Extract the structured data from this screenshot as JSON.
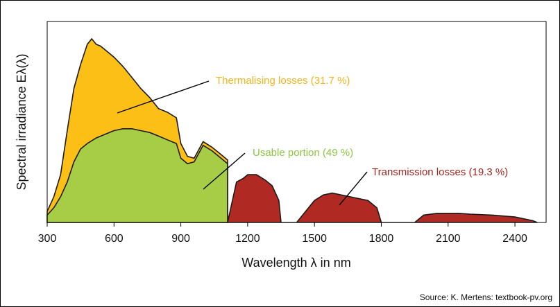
{
  "chart_data": {
    "type": "area",
    "xlabel": "Wavelength λ in nm",
    "ylabel": "Spectral irradiance Eλ(λ)",
    "xlim": [
      300,
      2540
    ],
    "ylim": [
      0,
      1
    ],
    "x_ticks": [
      300,
      600,
      900,
      1200,
      1500,
      1800,
      2100,
      2400
    ],
    "x_tick_labels": [
      "300",
      "600",
      "900",
      "1200",
      "1500",
      "1800",
      "2100",
      "2400"
    ],
    "series": [
      {
        "name": "Thermalising losses (31.7 %)",
        "color": "#fbbf16",
        "x": [
          300,
          330,
          360,
          390,
          420,
          450,
          480,
          500,
          520,
          540,
          560,
          600,
          640,
          680,
          720,
          760,
          800,
          840,
          880,
          900,
          930,
          960,
          1000,
          1040,
          1080,
          1110
        ],
        "values": [
          0.06,
          0.14,
          0.26,
          0.5,
          0.73,
          0.86,
          0.97,
          1.0,
          0.97,
          0.96,
          0.94,
          0.9,
          0.85,
          0.79,
          0.73,
          0.68,
          0.62,
          0.6,
          0.57,
          0.43,
          0.36,
          0.35,
          0.44,
          0.41,
          0.37,
          0.34
        ]
      },
      {
        "name": "Usable portion (49 %)",
        "color": "#a7cd46",
        "x": [
          300,
          330,
          360,
          390,
          420,
          450,
          480,
          520,
          560,
          600,
          640,
          680,
          720,
          760,
          800,
          840,
          880,
          900,
          930,
          960,
          1000,
          1040,
          1080,
          1110
        ],
        "values": [
          0.04,
          0.08,
          0.14,
          0.22,
          0.33,
          0.4,
          0.43,
          0.46,
          0.48,
          0.5,
          0.51,
          0.51,
          0.5,
          0.49,
          0.47,
          0.45,
          0.43,
          0.35,
          0.32,
          0.33,
          0.42,
          0.39,
          0.35,
          0.32
        ]
      },
      {
        "name": "Transmission losses (19.3 %)",
        "color": "#b02a23",
        "x": [
          1110,
          1150,
          1180,
          1200,
          1240,
          1280,
          1310,
          1340,
          1350,
          1420,
          1460,
          1500,
          1540,
          1580,
          1620,
          1660,
          1700,
          1740,
          1780,
          1800,
          1950,
          1990,
          2050,
          2100,
          2150,
          2200,
          2300,
          2400,
          2480,
          2500
        ],
        "values": [
          0.0,
          0.22,
          0.24,
          0.26,
          0.26,
          0.23,
          0.2,
          0.12,
          0.0,
          0.0,
          0.06,
          0.12,
          0.15,
          0.16,
          0.15,
          0.14,
          0.13,
          0.12,
          0.08,
          0.0,
          0.0,
          0.04,
          0.05,
          0.05,
          0.05,
          0.045,
          0.04,
          0.03,
          0.01,
          0.0
        ]
      }
    ],
    "source": "Source: K. Mertens: textbook-pv.org"
  }
}
